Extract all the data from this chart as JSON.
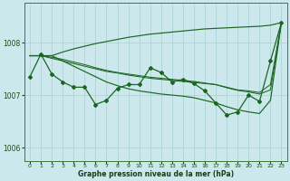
{
  "xlabel": "Graphe pression niveau de la mer (hPa)",
  "background_color": "#cce8ec",
  "grid_color": "#a8d0d4",
  "line_color": "#1a6620",
  "ylim": [
    1005.75,
    1008.75
  ],
  "yticks": [
    1006,
    1007,
    1008
  ],
  "xlim": [
    -0.5,
    23.5
  ],
  "xticks": [
    0,
    1,
    2,
    3,
    4,
    5,
    6,
    7,
    8,
    9,
    10,
    11,
    12,
    13,
    14,
    15,
    16,
    17,
    18,
    19,
    20,
    21,
    22,
    23
  ],
  "main_series": [
    1007.35,
    1007.78,
    1007.4,
    1007.25,
    1007.15,
    1007.15,
    1006.82,
    1006.9,
    1007.13,
    1007.2,
    1007.2,
    1007.52,
    1007.43,
    1007.25,
    1007.3,
    1007.22,
    1007.08,
    1006.85,
    1006.62,
    1006.68,
    1007.0,
    1006.88,
    1007.65,
    1008.38
  ],
  "line_up": [
    1007.75,
    1007.75,
    1007.75,
    1007.82,
    1007.88,
    1007.93,
    1007.98,
    1008.02,
    1008.06,
    1008.1,
    1008.13,
    1008.16,
    1008.18,
    1008.2,
    1008.22,
    1008.24,
    1008.26,
    1008.27,
    1008.28,
    1008.29,
    1008.3,
    1008.31,
    1008.33,
    1008.38
  ],
  "line_down": [
    1007.75,
    1007.75,
    1007.75,
    1007.65,
    1007.55,
    1007.45,
    1007.35,
    1007.25,
    1007.18,
    1007.12,
    1007.08,
    1007.05,
    1007.02,
    1007.0,
    1006.98,
    1006.95,
    1006.9,
    1006.85,
    1006.78,
    1006.72,
    1006.68,
    1006.65,
    1006.9,
    1008.38
  ],
  "line_mid1": [
    1007.75,
    1007.75,
    1007.7,
    1007.65,
    1007.6,
    1007.55,
    1007.5,
    1007.45,
    1007.42,
    1007.38,
    1007.35,
    1007.32,
    1007.3,
    1007.28,
    1007.26,
    1007.24,
    1007.22,
    1007.2,
    1007.15,
    1007.1,
    1007.08,
    1007.05,
    1007.2,
    1008.38
  ],
  "line_mid2": [
    1007.75,
    1007.75,
    1007.72,
    1007.68,
    1007.63,
    1007.58,
    1007.52,
    1007.47,
    1007.43,
    1007.4,
    1007.37,
    1007.34,
    1007.32,
    1007.3,
    1007.28,
    1007.26,
    1007.23,
    1007.2,
    1007.14,
    1007.09,
    1007.06,
    1007.02,
    1007.1,
    1008.38
  ]
}
